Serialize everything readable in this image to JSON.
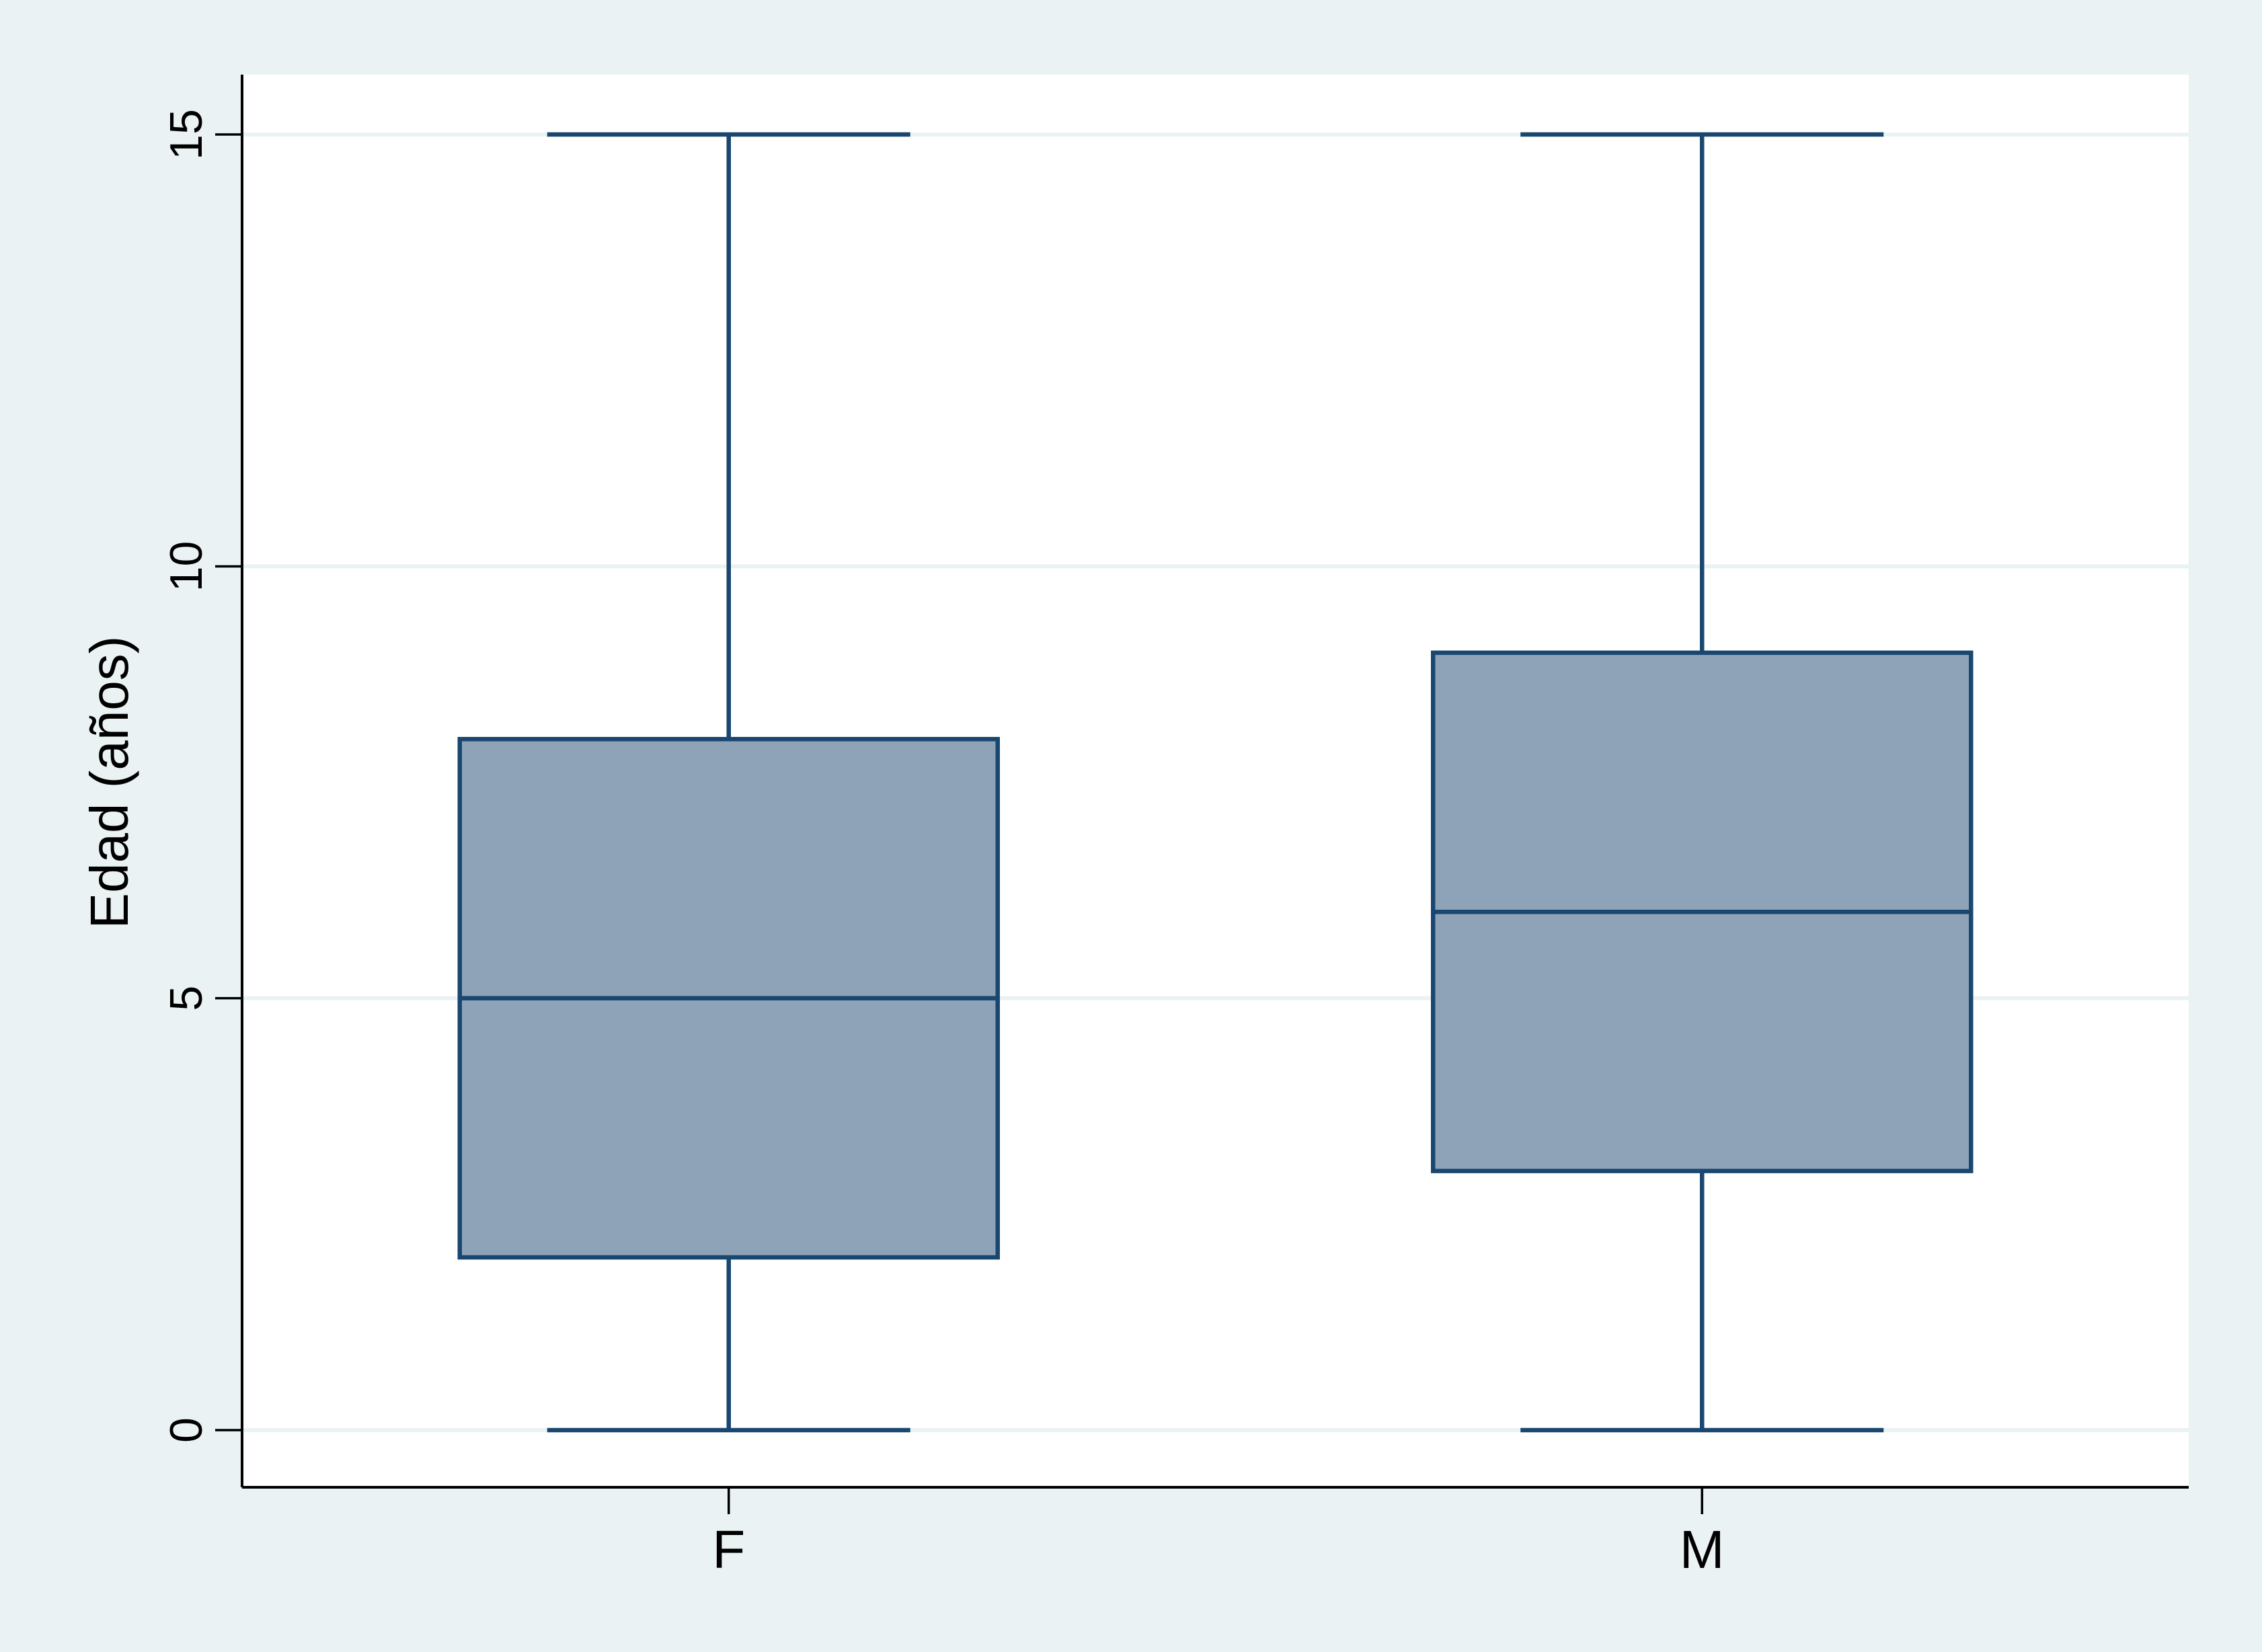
{
  "chart_data": {
    "type": "box",
    "ylabel": "Edad (años)",
    "xlabel": "",
    "ylim": [
      0,
      15
    ],
    "yticks": [
      0,
      5,
      10,
      15
    ],
    "grid": true,
    "orientation": "vertical",
    "categories": [
      "F",
      "M"
    ],
    "boxes": [
      {
        "category": "F",
        "whisker_low": 0,
        "q1": 2,
        "median": 5,
        "q3": 8,
        "whisker_high": 15
      },
      {
        "category": "M",
        "whisker_low": 0,
        "q1": 3,
        "median": 6,
        "q3": 9,
        "whisker_high": 15
      }
    ],
    "colors": {
      "outer_background": "#eaf2f3",
      "plot_background": "#ffffff",
      "box_fill": "#8ea3b8",
      "box_stroke": "#1a476f",
      "gridline": "#eaf2f3",
      "axis": "#000000"
    }
  }
}
